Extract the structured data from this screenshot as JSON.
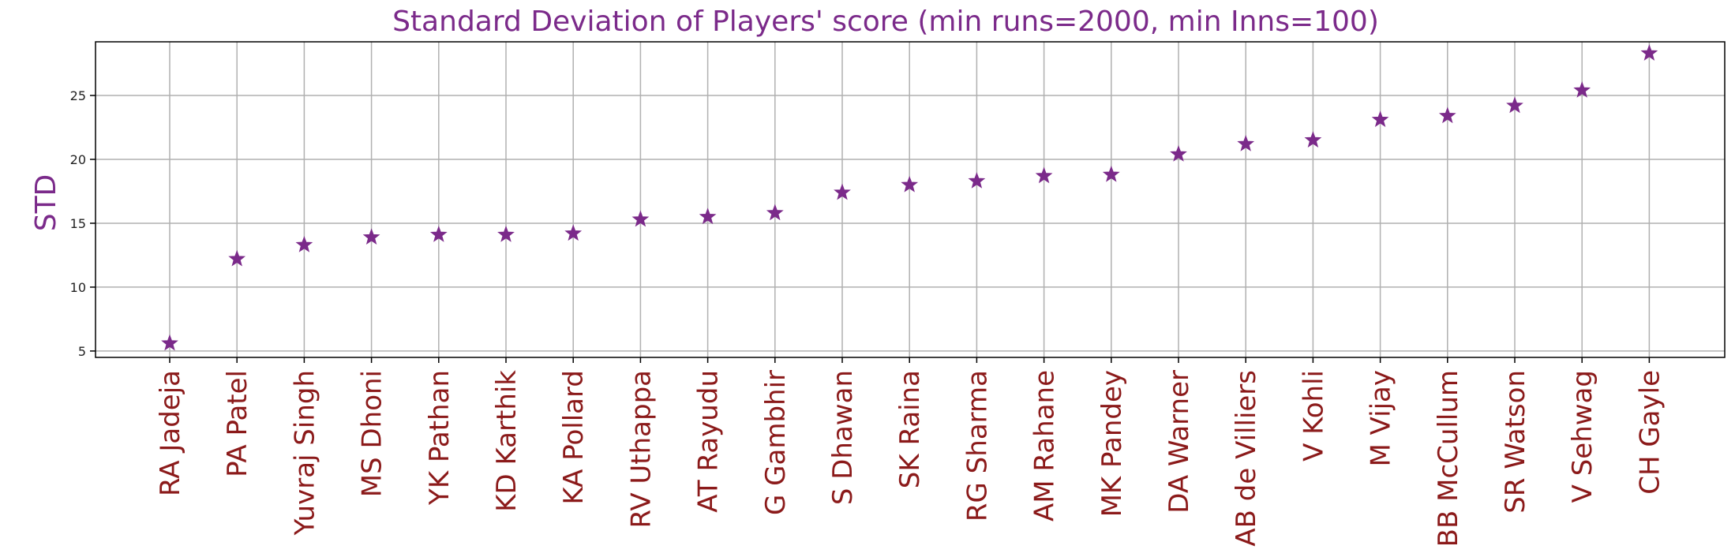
{
  "chart_data": {
    "type": "scatter",
    "title": "Standard Deviation of Players' score (min runs=2000, min Inns=100)",
    "xlabel": "",
    "ylabel": "STD",
    "ylim": [
      4.5,
      29.2
    ],
    "yticks": [
      5,
      10,
      15,
      20,
      25
    ],
    "grid": true,
    "marker": "star",
    "marker_color": "#7b2a8a",
    "title_color": "#7b2a8a",
    "ylabel_color": "#7b2a8a",
    "xtick_color": "#8b1a1a",
    "grid_color": "#b0b0b0",
    "categories": [
      "RA Jadeja",
      "PA Patel",
      "Yuvraj Singh",
      "MS Dhoni",
      "YK Pathan",
      "KD Karthik",
      "KA Pollard",
      "RV Uthappa",
      "AT Rayudu",
      "G Gambhir",
      "S Dhawan",
      "SK Raina",
      "RG Sharma",
      "AM Rahane",
      "MK Pandey",
      "DA Warner",
      "AB de Villiers",
      "V Kohli",
      "M Vijay",
      "BB McCullum",
      "SR Watson",
      "V Sehwag",
      "CH Gayle"
    ],
    "values": [
      5.6,
      12.2,
      13.3,
      13.9,
      14.1,
      14.1,
      14.2,
      15.3,
      15.5,
      15.8,
      17.4,
      18.0,
      18.3,
      18.7,
      18.8,
      20.4,
      21.2,
      21.5,
      23.1,
      23.4,
      24.2,
      25.4,
      28.3
    ]
  }
}
